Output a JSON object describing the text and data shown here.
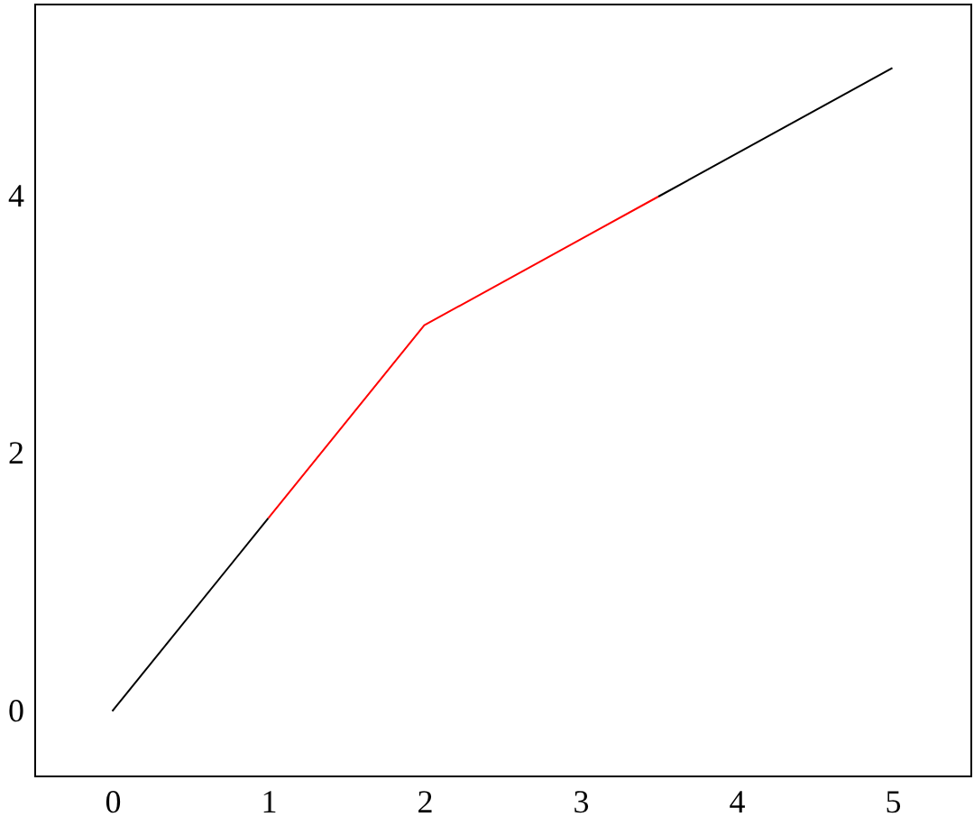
{
  "chart_data": {
    "type": "line",
    "xlim": [
      -0.5,
      5.5
    ],
    "ylim": [
      -0.5,
      5.5
    ],
    "xticks": [
      0,
      1,
      2,
      3,
      4,
      5
    ],
    "yticks": [
      0,
      2,
      4
    ],
    "grid": false,
    "marker": "none",
    "line_style": "solid",
    "series": [
      {
        "color": "#000000",
        "x": [
          0,
          1
        ],
        "values": [
          0,
          1.5
        ]
      },
      {
        "color": "#ff0000",
        "x": [
          1,
          2,
          3.5
        ],
        "values": [
          1.5,
          3,
          4
        ]
      },
      {
        "color": "#000000",
        "x": [
          3.5,
          5
        ],
        "values": [
          4,
          5
        ]
      }
    ]
  }
}
